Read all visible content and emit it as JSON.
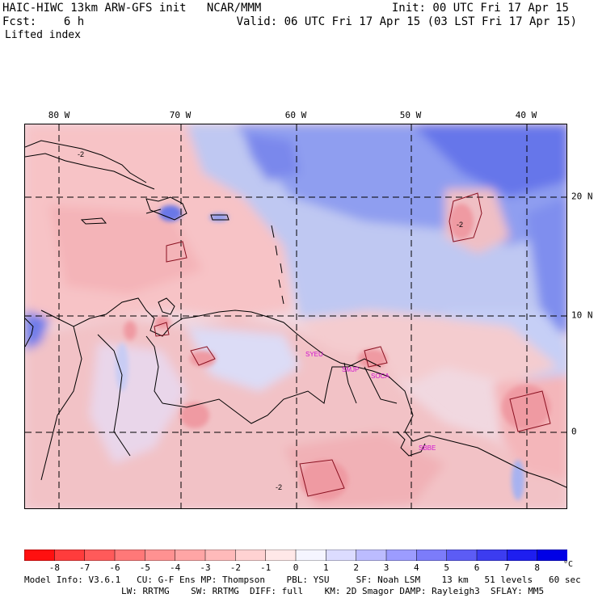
{
  "header": {
    "left_line1": "HAIC-HIWC 13km ARW-GFS init   NCAR/MMM",
    "left_line2": "Fcst:    6 h",
    "left_line3": "Lifted index",
    "right_line1": "Init: 00 UTC Fri 17 Apr 15",
    "right_line2": "Valid: 06 UTC Fri 17 Apr 15 (03 LST Fri 17 Apr 15)"
  },
  "map": {
    "lon_labels": [
      "80 W",
      "70 W",
      "60 W",
      "50 W",
      "40 W"
    ],
    "lat_labels": [
      "20 N",
      "10 N",
      "0"
    ],
    "station_labels": [
      "SYEU",
      "SMJP",
      "SOCA",
      "SBBE"
    ],
    "contour_labels": [
      "-2",
      "-2",
      "-2"
    ]
  },
  "legend": {
    "levels": [
      "-8",
      "-7",
      "-6",
      "-5",
      "-4",
      "-3",
      "-2",
      "-1",
      "0",
      "1",
      "2",
      "3",
      "4",
      "5",
      "6",
      "7",
      "8"
    ],
    "unit": "°C",
    "colors": [
      "#ff1010",
      "#ff3c3c",
      "#ff5a5a",
      "#ff7878",
      "#ff9191",
      "#ffa5a5",
      "#ffbaba",
      "#ffd2d2",
      "#ffe8e8",
      "#f5f5ff",
      "#dcdcff",
      "#bcbcff",
      "#9c9cff",
      "#7c7cfa",
      "#5c5cf5",
      "#3c3cf0",
      "#1e1ef0",
      "#0000e6"
    ]
  },
  "footer": {
    "line1": "Model Info: V3.6.1   CU: G-F Ens MP: Thompson    PBL: YSU     SF: Noah LSM    13 km   51 levels   60 sec",
    "line2": "LW: RRTMG    SW: RRTMG  DIFF: full    KM: 2D Smagor DAMP: Rayleigh3  SFLAY: MM5"
  }
}
